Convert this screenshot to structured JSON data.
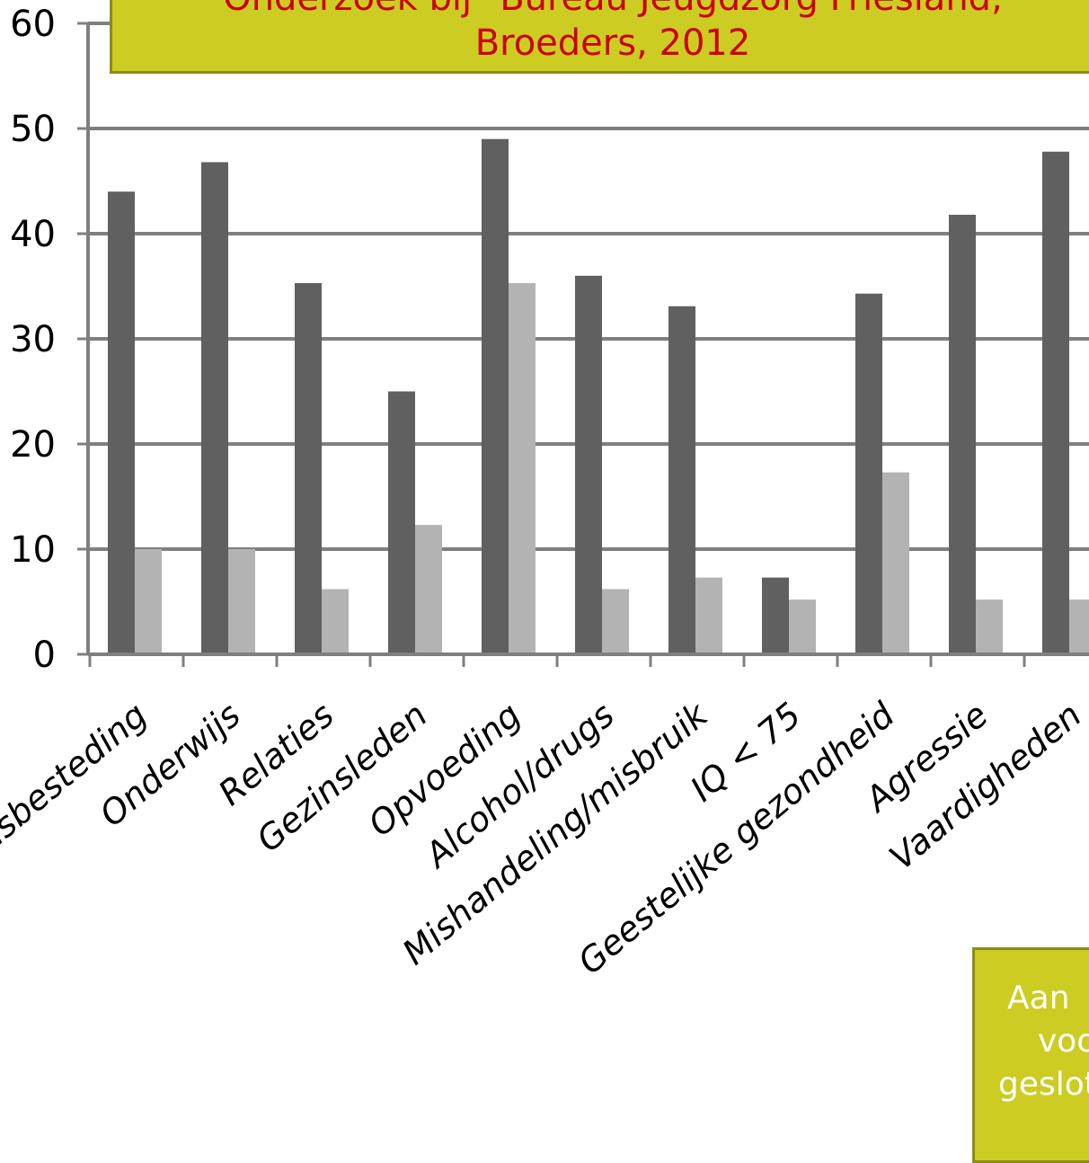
{
  "chart_data": {
    "type": "bar",
    "title_lines": [
      "Onderzoek bij \"Bureau Jeugdzorg Friesland,",
      "Broeders, 2012"
    ],
    "categories": [
      "Vrijetijdsbesteding",
      "Onderwijs",
      "Relaties",
      "Gezinsleden",
      "Opvoeding",
      "Alcohol/drugs",
      "Mishandeling/misbruik",
      "IQ < 75",
      "Geestelijke gezondheid",
      "Agressie",
      "Vaardigheden"
    ],
    "series": [
      {
        "values": [
          44,
          46.8,
          35.3,
          25,
          49,
          36,
          33.1,
          7.3,
          34.3,
          41.8,
          47.8
        ],
        "color": "#606060"
      },
      {
        "values": [
          10,
          10,
          6.2,
          12.3,
          35.3,
          6.2,
          7.3,
          5.2,
          17.3,
          5.2,
          5.2
        ],
        "color": "#b3b3b3"
      }
    ],
    "yticks": [
      0,
      10,
      20,
      30,
      40,
      50,
      60
    ],
    "ylim": [
      0,
      60
    ],
    "grid": true
  },
  "note": {
    "lines": [
      "Aan",
      "voo",
      "geslot"
    ]
  }
}
